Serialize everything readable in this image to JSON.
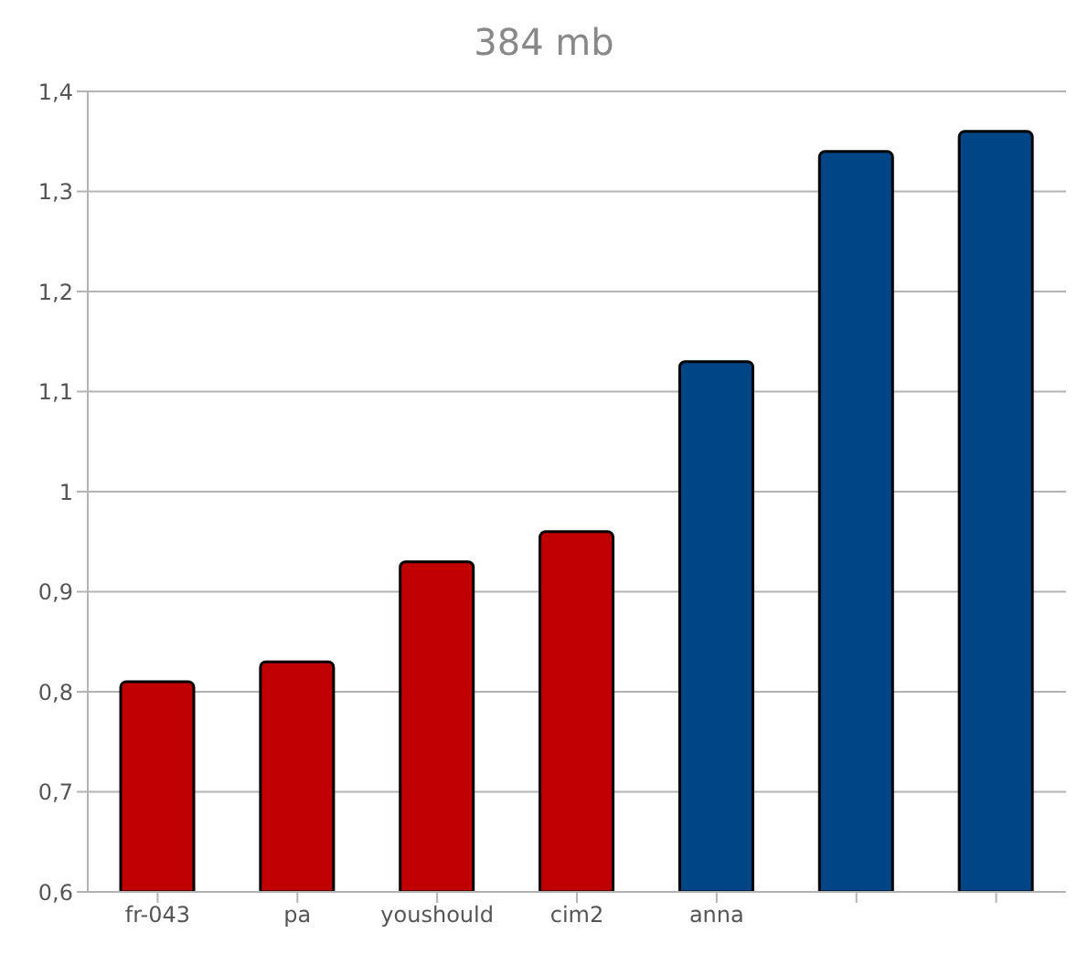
{
  "chart_data": {
    "type": "bar",
    "title": "384 mb",
    "categories": [
      "fr-043",
      "pa",
      "youshould",
      "cim2",
      "anna",
      null,
      null
    ],
    "values": [
      0.81,
      0.83,
      0.93,
      0.96,
      1.13,
      1.34,
      1.36
    ],
    "colors": [
      "#c00000",
      "#c00000",
      "#c00000",
      "#c00000",
      "#004586",
      "#004586",
      "#004586"
    ],
    "ylim": [
      0.6,
      1.4
    ],
    "yticks": [
      {
        "value": 0.6,
        "label": "0,6"
      },
      {
        "value": 0.7,
        "label": "0,7"
      },
      {
        "value": 0.8,
        "label": "0,8"
      },
      {
        "value": 0.9,
        "label": "0,9"
      },
      {
        "value": 1,
        "label": "1"
      },
      {
        "value": 1.1,
        "label": "1,1"
      },
      {
        "value": 1.2,
        "label": "1,2"
      },
      {
        "value": 1.3,
        "label": "1,3"
      },
      {
        "value": 1.4,
        "label": "1,4"
      }
    ],
    "grid": "y"
  }
}
